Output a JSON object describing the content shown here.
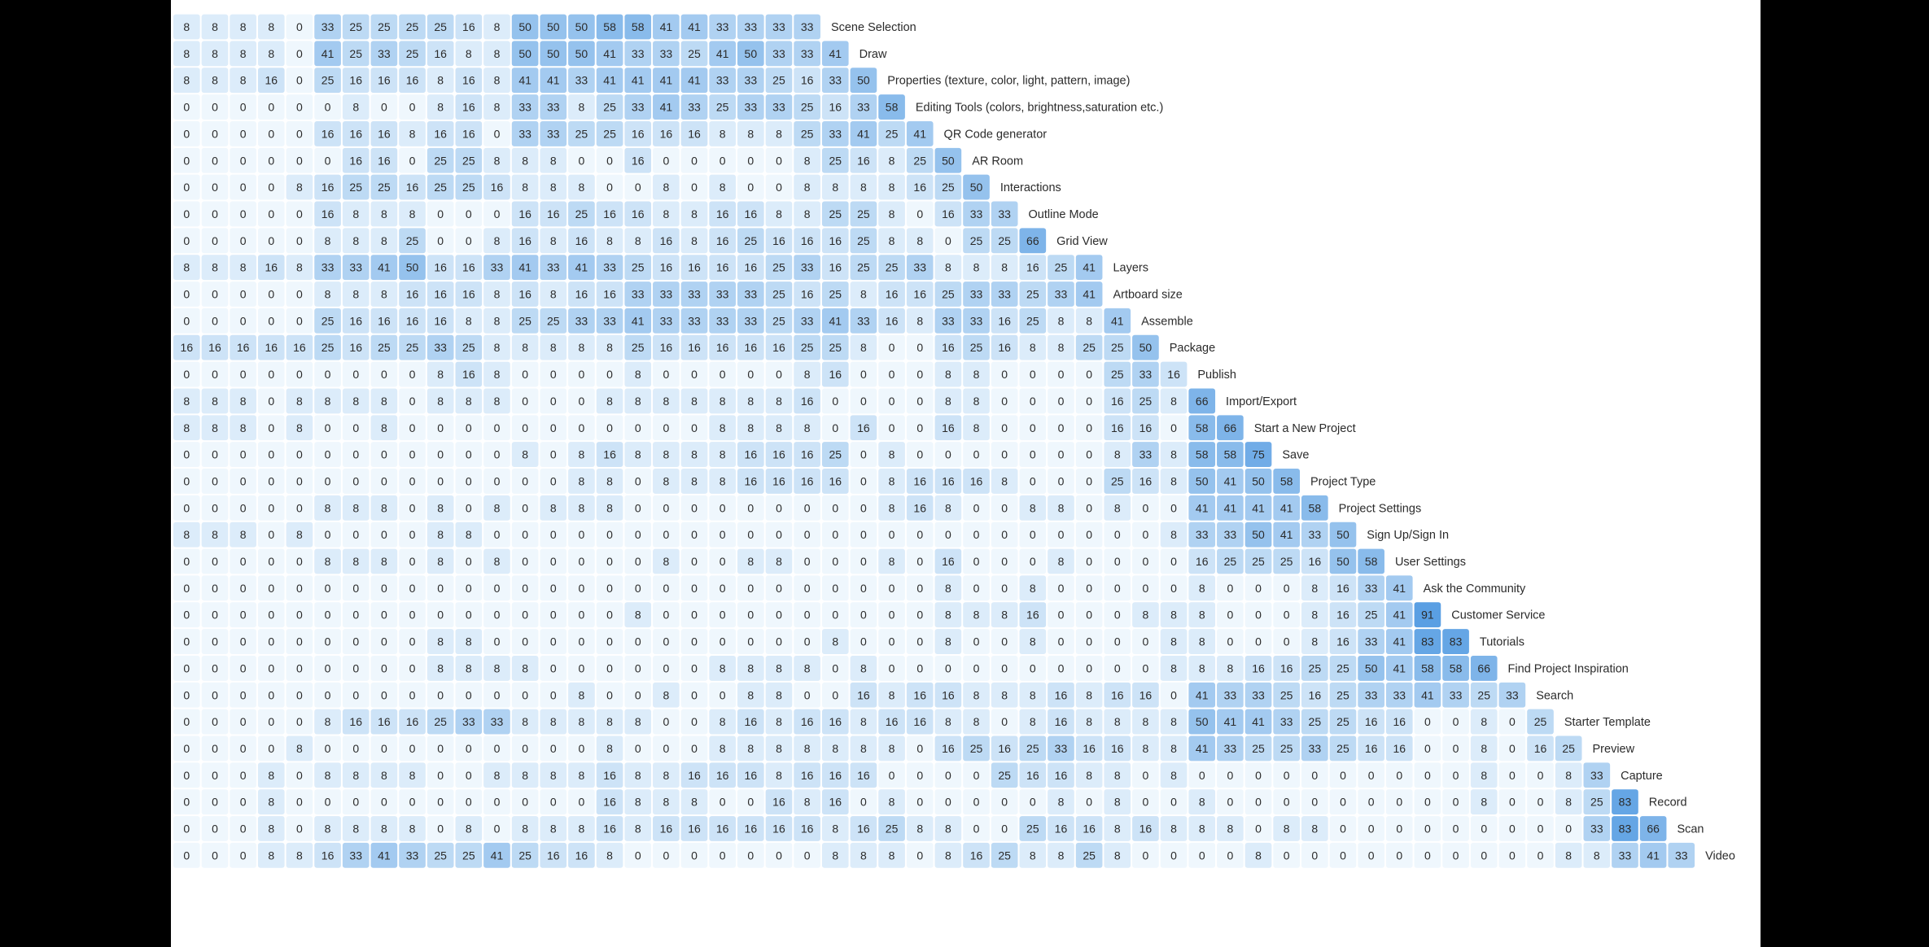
{
  "chart_data": {
    "type": "heatmap",
    "title": "",
    "xlabel": "",
    "ylabel": "",
    "colors": {
      "low": "#ffffff",
      "high": "#5a9fe3",
      "label": "#2b2b2b"
    },
    "rows": [
      {
        "label": "Scene Selection",
        "values": [
          8,
          8,
          8,
          8,
          0,
          33,
          25,
          25,
          25,
          25,
          16,
          8,
          50,
          50,
          50,
          58,
          58,
          41,
          41,
          33,
          33,
          33,
          33
        ]
      },
      {
        "label": "Draw",
        "values": [
          8,
          8,
          8,
          8,
          0,
          41,
          25,
          33,
          25,
          16,
          8,
          8,
          50,
          50,
          50,
          41,
          33,
          33,
          25,
          41,
          50,
          33,
          33,
          41
        ]
      },
      {
        "label": "Properties (texture, color, light, pattern, image)",
        "values": [
          8,
          8,
          8,
          16,
          0,
          25,
          16,
          16,
          16,
          8,
          16,
          8,
          41,
          41,
          33,
          41,
          41,
          41,
          41,
          33,
          33,
          25,
          16,
          33,
          50
        ]
      },
      {
        "label": "Editing Tools (colors, brightness,saturation etc.)",
        "values": [
          0,
          0,
          0,
          0,
          0,
          0,
          8,
          0,
          0,
          8,
          16,
          8,
          33,
          33,
          8,
          25,
          33,
          41,
          33,
          25,
          33,
          33,
          25,
          16,
          33,
          58
        ]
      },
      {
        "label": "QR Code generator",
        "values": [
          0,
          0,
          0,
          0,
          0,
          16,
          16,
          16,
          8,
          16,
          16,
          0,
          33,
          33,
          25,
          25,
          16,
          16,
          16,
          8,
          8,
          8,
          25,
          33,
          41,
          25,
          41
        ]
      },
      {
        "label": "AR Room",
        "values": [
          0,
          0,
          0,
          0,
          0,
          0,
          16,
          16,
          0,
          25,
          25,
          8,
          8,
          8,
          0,
          0,
          16,
          0,
          0,
          0,
          0,
          0,
          8,
          25,
          16,
          8,
          25,
          50
        ]
      },
      {
        "label": "Interactions",
        "values": [
          0,
          0,
          0,
          0,
          8,
          16,
          25,
          25,
          16,
          25,
          25,
          16,
          8,
          8,
          8,
          0,
          0,
          8,
          0,
          8,
          0,
          0,
          8,
          8,
          8,
          8,
          16,
          25,
          50
        ]
      },
      {
        "label": "Outline Mode",
        "values": [
          0,
          0,
          0,
          0,
          0,
          16,
          8,
          8,
          8,
          0,
          0,
          0,
          16,
          16,
          25,
          16,
          16,
          8,
          8,
          16,
          16,
          8,
          8,
          25,
          25,
          8,
          0,
          16,
          33,
          33
        ]
      },
      {
        "label": "Grid View",
        "values": [
          0,
          0,
          0,
          0,
          0,
          8,
          8,
          8,
          25,
          0,
          0,
          8,
          16,
          8,
          16,
          8,
          8,
          16,
          8,
          16,
          25,
          16,
          16,
          16,
          25,
          8,
          8,
          0,
          25,
          25,
          66
        ]
      },
      {
        "label": "Layers",
        "values": [
          8,
          8,
          8,
          16,
          8,
          33,
          33,
          41,
          50,
          16,
          16,
          33,
          41,
          33,
          41,
          33,
          25,
          16,
          16,
          16,
          16,
          25,
          33,
          16,
          25,
          25,
          33,
          8,
          8,
          8,
          16,
          25,
          41
        ]
      },
      {
        "label": "Artboard size",
        "values": [
          0,
          0,
          0,
          0,
          0,
          8,
          8,
          8,
          16,
          16,
          16,
          8,
          16,
          8,
          16,
          16,
          33,
          33,
          33,
          33,
          33,
          25,
          16,
          25,
          8,
          16,
          16,
          25,
          33,
          33,
          25,
          33,
          41
        ]
      },
      {
        "label": "Assemble",
        "values": [
          0,
          0,
          0,
          0,
          0,
          25,
          16,
          16,
          16,
          16,
          8,
          8,
          25,
          25,
          33,
          33,
          41,
          33,
          33,
          33,
          33,
          25,
          33,
          41,
          33,
          16,
          8,
          33,
          33,
          16,
          25,
          8,
          8,
          41
        ]
      },
      {
        "label": "Package",
        "values": [
          16,
          16,
          16,
          16,
          16,
          25,
          16,
          25,
          25,
          33,
          25,
          8,
          8,
          8,
          8,
          8,
          25,
          16,
          16,
          16,
          16,
          16,
          25,
          25,
          8,
          0,
          0,
          16,
          25,
          16,
          8,
          8,
          25,
          25,
          50
        ]
      },
      {
        "label": "Publish",
        "values": [
          0,
          0,
          0,
          0,
          0,
          0,
          0,
          0,
          0,
          8,
          16,
          8,
          0,
          0,
          0,
          0,
          8,
          0,
          0,
          0,
          0,
          0,
          8,
          16,
          0,
          0,
          0,
          8,
          8,
          0,
          0,
          0,
          0,
          25,
          33,
          16
        ]
      },
      {
        "label": "Import/Export",
        "values": [
          8,
          8,
          8,
          0,
          8,
          8,
          8,
          8,
          0,
          8,
          8,
          8,
          0,
          0,
          0,
          8,
          8,
          8,
          8,
          8,
          8,
          8,
          16,
          0,
          0,
          0,
          0,
          8,
          8,
          0,
          0,
          0,
          0,
          16,
          25,
          8,
          66
        ]
      },
      {
        "label": "Start a New Project",
        "values": [
          8,
          8,
          8,
          0,
          8,
          0,
          0,
          8,
          0,
          0,
          0,
          0,
          0,
          0,
          0,
          0,
          0,
          0,
          0,
          8,
          8,
          8,
          8,
          0,
          16,
          0,
          0,
          16,
          8,
          0,
          0,
          0,
          0,
          16,
          16,
          0,
          58,
          66
        ]
      },
      {
        "label": "Save",
        "values": [
          0,
          0,
          0,
          0,
          0,
          0,
          0,
          0,
          0,
          0,
          0,
          0,
          8,
          0,
          8,
          16,
          8,
          8,
          8,
          8,
          16,
          16,
          16,
          25,
          0,
          8,
          0,
          0,
          0,
          0,
          0,
          0,
          0,
          8,
          33,
          8,
          58,
          58,
          75
        ]
      },
      {
        "label": "Project Type",
        "values": [
          0,
          0,
          0,
          0,
          0,
          0,
          0,
          0,
          0,
          0,
          0,
          0,
          0,
          0,
          8,
          8,
          0,
          8,
          8,
          8,
          16,
          16,
          16,
          16,
          0,
          8,
          16,
          16,
          16,
          8,
          0,
          0,
          0,
          25,
          16,
          8,
          50,
          41,
          50,
          58
        ]
      },
      {
        "label": "Project Settings",
        "values": [
          0,
          0,
          0,
          0,
          0,
          8,
          8,
          8,
          0,
          8,
          0,
          8,
          0,
          8,
          8,
          8,
          0,
          0,
          0,
          0,
          0,
          0,
          0,
          0,
          0,
          8,
          16,
          8,
          0,
          0,
          8,
          8,
          0,
          8,
          0,
          0,
          41,
          41,
          41,
          41,
          58
        ]
      },
      {
        "label": "Sign Up/Sign In",
        "values": [
          8,
          8,
          8,
          0,
          8,
          0,
          0,
          0,
          0,
          8,
          8,
          0,
          0,
          0,
          0,
          0,
          0,
          0,
          0,
          0,
          0,
          0,
          0,
          0,
          0,
          0,
          0,
          0,
          0,
          0,
          0,
          0,
          0,
          0,
          0,
          8,
          33,
          33,
          50,
          41,
          33,
          50
        ]
      },
      {
        "label": "User Settings",
        "values": [
          0,
          0,
          0,
          0,
          0,
          8,
          8,
          8,
          0,
          8,
          0,
          8,
          0,
          0,
          0,
          0,
          0,
          8,
          0,
          0,
          8,
          8,
          0,
          0,
          0,
          8,
          0,
          16,
          0,
          0,
          0,
          8,
          0,
          0,
          0,
          0,
          16,
          25,
          25,
          25,
          16,
          50,
          58
        ]
      },
      {
        "label": "Ask the Community",
        "values": [
          0,
          0,
          0,
          0,
          0,
          0,
          0,
          0,
          0,
          0,
          0,
          0,
          0,
          0,
          0,
          0,
          0,
          0,
          0,
          0,
          0,
          0,
          0,
          0,
          0,
          0,
          0,
          8,
          0,
          0,
          8,
          0,
          0,
          0,
          0,
          0,
          8,
          0,
          0,
          0,
          8,
          16,
          33,
          41
        ]
      },
      {
        "label": "Customer Service",
        "values": [
          0,
          0,
          0,
          0,
          0,
          0,
          0,
          0,
          0,
          0,
          0,
          0,
          0,
          0,
          0,
          0,
          8,
          0,
          0,
          0,
          0,
          0,
          0,
          0,
          0,
          0,
          0,
          8,
          8,
          8,
          16,
          0,
          0,
          0,
          8,
          8,
          8,
          0,
          0,
          0,
          8,
          16,
          25,
          41,
          91
        ]
      },
      {
        "label": "Tutorials",
        "values": [
          0,
          0,
          0,
          0,
          0,
          0,
          0,
          0,
          0,
          8,
          8,
          0,
          0,
          0,
          0,
          0,
          0,
          0,
          0,
          0,
          0,
          0,
          0,
          8,
          0,
          0,
          0,
          8,
          0,
          0,
          8,
          0,
          0,
          0,
          0,
          8,
          8,
          0,
          0,
          0,
          8,
          16,
          33,
          41,
          83,
          83
        ]
      },
      {
        "label": "Find Project Inspiration",
        "values": [
          0,
          0,
          0,
          0,
          0,
          0,
          0,
          0,
          0,
          8,
          8,
          8,
          8,
          0,
          0,
          0,
          0,
          0,
          0,
          8,
          8,
          8,
          8,
          0,
          8,
          0,
          0,
          0,
          0,
          0,
          0,
          0,
          0,
          0,
          0,
          8,
          8,
          8,
          16,
          16,
          25,
          25,
          50,
          41,
          58,
          58,
          66
        ]
      },
      {
        "label": "Search",
        "values": [
          0,
          0,
          0,
          0,
          0,
          0,
          0,
          0,
          0,
          0,
          0,
          0,
          0,
          0,
          8,
          0,
          0,
          8,
          0,
          0,
          8,
          8,
          0,
          0,
          16,
          8,
          16,
          16,
          8,
          8,
          8,
          16,
          8,
          16,
          16,
          0,
          41,
          33,
          33,
          25,
          16,
          25,
          33,
          33,
          41,
          33,
          25,
          33
        ]
      },
      {
        "label": "Starter Template",
        "values": [
          0,
          0,
          0,
          0,
          0,
          8,
          16,
          16,
          16,
          25,
          33,
          33,
          8,
          8,
          8,
          8,
          8,
          0,
          0,
          8,
          16,
          8,
          16,
          16,
          8,
          16,
          16,
          8,
          8,
          0,
          8,
          16,
          8,
          8,
          8,
          8,
          50,
          41,
          41,
          33,
          25,
          25,
          16,
          16,
          0,
          0,
          8,
          0,
          25
        ]
      },
      {
        "label": "Preview",
        "values": [
          0,
          0,
          0,
          0,
          8,
          0,
          0,
          0,
          0,
          0,
          0,
          0,
          0,
          0,
          0,
          8,
          0,
          0,
          0,
          8,
          8,
          8,
          8,
          8,
          8,
          8,
          0,
          16,
          25,
          16,
          25,
          33,
          16,
          16,
          8,
          8,
          41,
          33,
          25,
          25,
          33,
          25,
          16,
          16,
          0,
          0,
          8,
          0,
          16,
          25
        ]
      },
      {
        "label": "Capture",
        "values": [
          0,
          0,
          0,
          8,
          0,
          8,
          8,
          8,
          8,
          0,
          0,
          8,
          8,
          8,
          8,
          16,
          8,
          8,
          16,
          16,
          16,
          8,
          16,
          16,
          16,
          0,
          0,
          0,
          0,
          25,
          16,
          16,
          8,
          8,
          0,
          8,
          0,
          0,
          0,
          0,
          0,
          0,
          0,
          0,
          0,
          0,
          8,
          0,
          0,
          8,
          33
        ]
      },
      {
        "label": "Record",
        "values": [
          0,
          0,
          0,
          8,
          0,
          0,
          0,
          0,
          0,
          0,
          0,
          0,
          0,
          0,
          0,
          16,
          8,
          8,
          8,
          0,
          0,
          16,
          8,
          16,
          0,
          8,
          0,
          0,
          0,
          0,
          0,
          8,
          0,
          8,
          0,
          0,
          8,
          0,
          0,
          0,
          0,
          0,
          0,
          0,
          0,
          0,
          8,
          0,
          0,
          8,
          25,
          83
        ]
      },
      {
        "label": "Scan",
        "values": [
          0,
          0,
          0,
          8,
          0,
          8,
          8,
          8,
          8,
          0,
          8,
          0,
          8,
          8,
          8,
          16,
          8,
          16,
          16,
          16,
          16,
          16,
          16,
          8,
          16,
          25,
          8,
          8,
          0,
          0,
          25,
          16,
          16,
          8,
          16,
          8,
          8,
          8,
          0,
          8,
          8,
          0,
          0,
          0,
          0,
          0,
          0,
          0,
          0,
          0,
          33,
          83,
          66
        ]
      },
      {
        "label": "Video",
        "values": [
          0,
          0,
          0,
          8,
          8,
          16,
          33,
          41,
          33,
          25,
          25,
          41,
          25,
          16,
          16,
          8,
          0,
          0,
          0,
          0,
          0,
          0,
          0,
          8,
          8,
          8,
          0,
          8,
          16,
          25,
          8,
          8,
          25,
          8,
          0,
          0,
          0,
          0,
          8,
          0,
          0,
          0,
          0,
          0,
          0,
          0,
          0,
          0,
          0,
          8,
          8,
          33,
          41,
          33
        ]
      }
    ]
  }
}
